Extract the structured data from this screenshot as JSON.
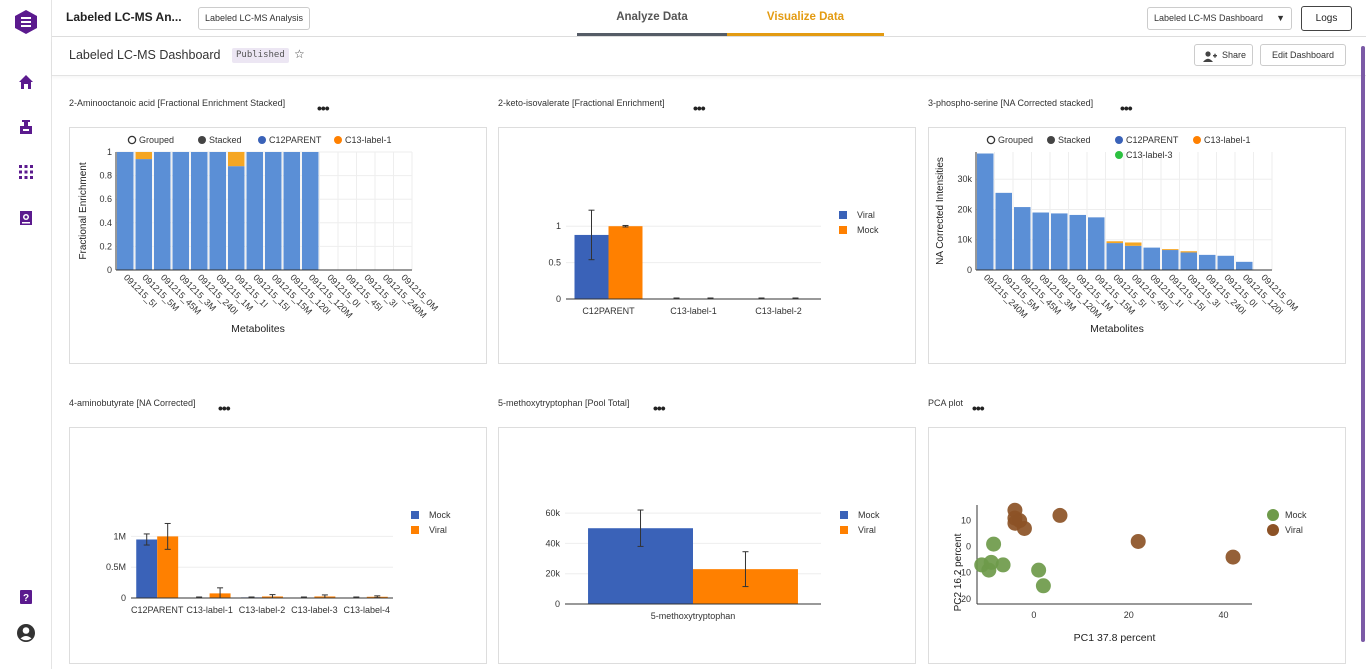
{
  "app": {
    "title": "Labeled LC-MS An...",
    "analysis_button": "Labeled LC-MS Analysis",
    "tabs": [
      {
        "label": "Analyze Data"
      },
      {
        "label": "Visualize Data"
      }
    ],
    "dashboard_select": "Labeled LC-MS Dashboard",
    "logs_button": "Logs"
  },
  "sidebar": {
    "items": [
      {
        "icon": "logo-icon"
      },
      {
        "icon": "home-icon"
      },
      {
        "icon": "flask-icon"
      },
      {
        "icon": "apps-grid-icon"
      },
      {
        "icon": "document-search-icon"
      },
      {
        "icon": "help-book-icon"
      },
      {
        "icon": "user-account-icon"
      }
    ]
  },
  "dashboard": {
    "title": "Labeled LC-MS Dashboard",
    "status_badge": "Published",
    "share_button": "Share",
    "edit_button": "Edit Dashboard"
  },
  "colors": {
    "accent": "#e39b12",
    "sidebar_icon": "#5b1a8e",
    "c12": "#5b8fd6",
    "c13": "#f5a623",
    "blue": "#3a62b8",
    "orange": "#ff8000",
    "green": "#2cc140",
    "mock_point": "#6e9a4a",
    "viral_point": "#8c5226"
  },
  "widgets": [
    {
      "title": "2-Aminooctanoic acid [Fractional Enrichment Stacked]"
    },
    {
      "title": "2-keto-isovalerate [Fractional Enrichment]"
    },
    {
      "title": "3-phospho-serine [NA Corrected stacked]"
    },
    {
      "title": "4-aminobutyrate [NA Corrected]"
    },
    {
      "title": "5-methoxytryptophan [Pool Total]"
    },
    {
      "title": "PCA plot"
    }
  ],
  "chart_data": [
    {
      "type": "bar",
      "stacked": true,
      "legend": [
        "Grouped",
        "Stacked",
        "C12PARENT",
        "C13-label-1"
      ],
      "legend_position": "top",
      "ylabel": "Fractional Enrichment",
      "xlabel": "Metabolites",
      "ylim": [
        0,
        1
      ],
      "yticks": [
        "1",
        "0.8",
        "0.6",
        "0.4",
        "0.2",
        "0"
      ],
      "categories": [
        "091215_5I",
        "091215_5M",
        "091215_45M",
        "091215_3M",
        "091215_240I",
        "091215_1M",
        "091215_1I",
        "091215_15I",
        "091215_15M",
        "091215_120I",
        "091215_120M",
        "091215_0I",
        "091215_45I",
        "091215_3I",
        "091215_240M",
        "091215_0M"
      ],
      "series": [
        {
          "name": "C12PARENT",
          "values": [
            1,
            0.94,
            1,
            1,
            1,
            1,
            0.88,
            1,
            1,
            1,
            1,
            0,
            0,
            0,
            0,
            0
          ]
        },
        {
          "name": "C13-label-1",
          "values": [
            0,
            0.06,
            0,
            0,
            0,
            0,
            0.12,
            0,
            0,
            0,
            0,
            0,
            0,
            0,
            0,
            0
          ]
        }
      ]
    },
    {
      "type": "bar",
      "legend": [
        "Viral",
        "Mock"
      ],
      "legend_position": "right",
      "ylim": [
        0,
        1.25
      ],
      "yticks": [
        "1",
        "0.5",
        "0"
      ],
      "categories": [
        "C12PARENT",
        "C13-label-1",
        "C13-label-2"
      ],
      "series": [
        {
          "name": "Viral",
          "values": [
            0.88,
            0,
            0.003
          ],
          "error": [
            0.34,
            0,
            0
          ]
        },
        {
          "name": "Mock",
          "values": [
            1.0,
            0,
            0
          ],
          "error": [
            0.01,
            0,
            0
          ]
        }
      ]
    },
    {
      "type": "bar",
      "stacked": true,
      "legend": [
        "Grouped",
        "Stacked",
        "C12PARENT",
        "C13-label-1",
        "C13-label-3"
      ],
      "legend_position": "top",
      "ylabel": "NA Corrected Intensities",
      "xlabel": "Metabolites",
      "ylim": [
        0,
        39000
      ],
      "yticks": [
        "30k",
        "20k",
        "10k",
        "0"
      ],
      "categories": [
        "091215_240M",
        "091215_5M",
        "091215_45M",
        "091215_3M",
        "091215_120M",
        "091215_1M",
        "091215_15M",
        "091215_5I",
        "091215_45I",
        "091215_1I",
        "091215_15I",
        "091215_3I",
        "091215_240I",
        "091215_0I",
        "091215_120I",
        "091215_0M"
      ],
      "series": [
        {
          "name": "C12PARENT",
          "values": [
            38500,
            25500,
            20800,
            19000,
            18700,
            18200,
            17400,
            8900,
            8000,
            7400,
            6600,
            5800,
            5000,
            4700,
            2700,
            0
          ]
        },
        {
          "name": "C13-label-1",
          "values": [
            0,
            0,
            0,
            0,
            0,
            0,
            0,
            600,
            1100,
            0,
            300,
            400,
            0,
            0,
            0,
            0
          ]
        },
        {
          "name": "C13-label-3",
          "values": [
            0,
            0,
            0,
            0,
            0,
            0,
            0,
            0,
            0,
            0,
            0,
            0,
            0,
            0,
            0,
            0
          ]
        }
      ]
    },
    {
      "type": "bar",
      "legend": [
        "Mock",
        "Viral"
      ],
      "legend_position": "right",
      "ylim": [
        0,
        1250000
      ],
      "yticks": [
        "1M",
        "0.5M",
        "0"
      ],
      "categories": [
        "C12PARENT",
        "C13-label-1",
        "C13-label-2",
        "C13-label-3",
        "C13-label-4"
      ],
      "series": [
        {
          "name": "Mock",
          "values": [
            950000,
            5000,
            10000,
            5000,
            5000
          ],
          "error": [
            90000,
            0,
            0,
            0,
            0
          ]
        },
        {
          "name": "Viral",
          "values": [
            1000000,
            75000,
            25000,
            25000,
            20000
          ],
          "error": [
            210000,
            90000,
            30000,
            25000,
            15000
          ]
        }
      ]
    },
    {
      "type": "bar",
      "legend": [
        "Mock",
        "Viral"
      ],
      "legend_position": "right",
      "ylim": [
        0,
        64000
      ],
      "yticks": [
        "60k",
        "40k",
        "20k",
        "0"
      ],
      "categories": [
        "5-methoxytryptophan"
      ],
      "series": [
        {
          "name": "Mock",
          "values": [
            50000
          ],
          "error": [
            12000
          ]
        },
        {
          "name": "Viral",
          "values": [
            23000
          ],
          "error": [
            11500
          ]
        }
      ]
    },
    {
      "type": "scatter",
      "legend": [
        "Mock",
        "Viral"
      ],
      "legend_position": "right",
      "xlabel": "PC1 37.8 percent",
      "ylabel": "PC2 16.2 percent",
      "xlim": [
        -12,
        46
      ],
      "ylim": [
        -22,
        16
      ],
      "xticks": [
        "0",
        "20",
        "40"
      ],
      "yticks": [
        "10",
        "0",
        "-10",
        "-20"
      ],
      "series": [
        {
          "name": "Mock",
          "points": [
            [
              -8.5,
              1
            ],
            [
              -11,
              -7
            ],
            [
              -9.5,
              -9
            ],
            [
              -6.5,
              -7
            ],
            [
              -9,
              -6
            ],
            [
              1,
              -9
            ],
            [
              2,
              -15
            ]
          ]
        },
        {
          "name": "Viral",
          "points": [
            [
              -4,
              14
            ],
            [
              -4,
              11
            ],
            [
              -3,
              10
            ],
            [
              -4,
              9
            ],
            [
              -2,
              7
            ],
            [
              5.5,
              12
            ],
            [
              22,
              2
            ],
            [
              42,
              -4
            ]
          ]
        }
      ]
    }
  ]
}
